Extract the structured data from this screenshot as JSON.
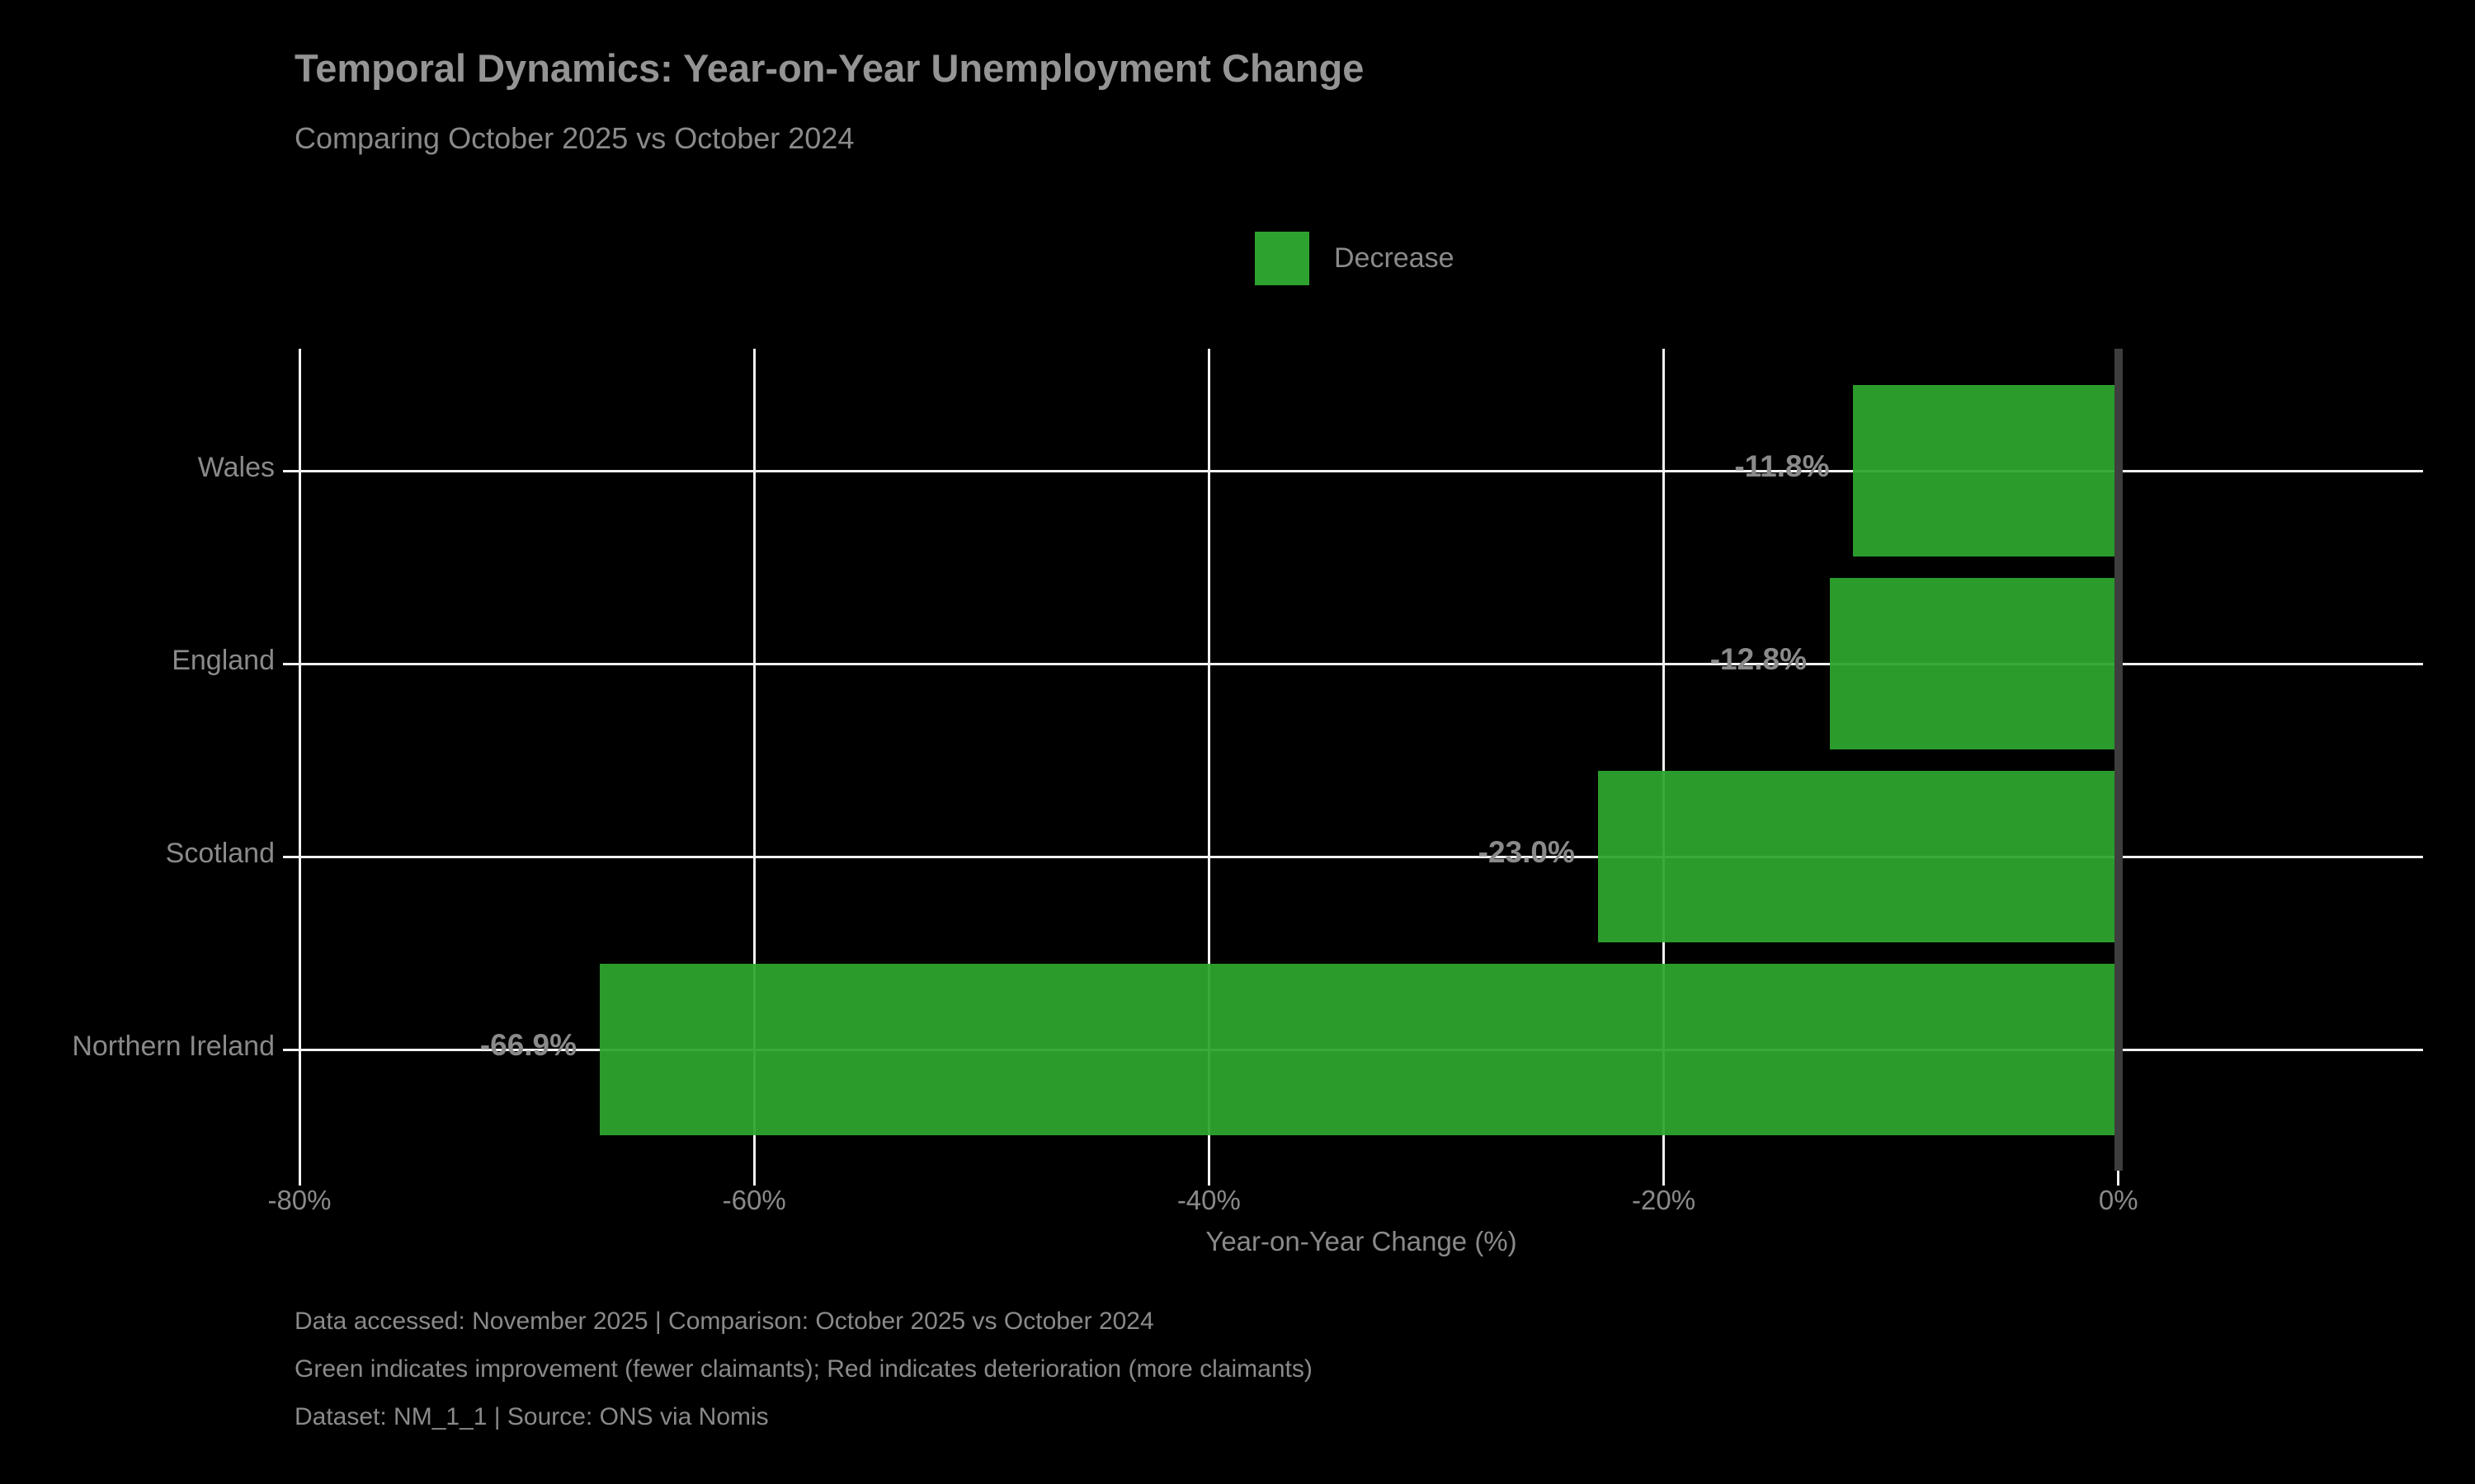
{
  "header": {
    "title": "Temporal Dynamics: Year-on-Year Unemployment Change",
    "subtitle": "Comparing October 2025 vs October 2024"
  },
  "legend": {
    "label": "Decrease",
    "swatch_color": "#2ea22e",
    "position": "upper center above plot"
  },
  "chart_data": {
    "type": "bar",
    "orientation": "horizontal",
    "title": "Temporal Dynamics: Year-on-Year Unemployment Change",
    "subtitle": "Comparing October 2025 vs October 2024",
    "categories": [
      "Wales",
      "England",
      "Scotland",
      "Northern Ireland"
    ],
    "values": [
      -11.8,
      -12.8,
      -23.0,
      -66.9
    ],
    "bar_labels": [
      "-11.8%",
      "-12.8%",
      "-23.0%",
      "-66.9%"
    ],
    "series_name": "Decrease",
    "xlabel": "Year-on-Year Change (%)",
    "ylabel": "",
    "xlim": [
      -80,
      13.4
    ],
    "xticks": [
      -80,
      -60,
      -40,
      -20,
      0
    ],
    "xtick_labels": [
      "-80%",
      "-60%",
      "-40%",
      "-20%",
      "0%"
    ],
    "grid": true,
    "gridline_color": "#f2f2f2",
    "bar_color": "#2ea22e",
    "zero_line_color": "#3e3e3e",
    "background_color": "#000000",
    "text_color": "#8a8a8a"
  },
  "footer": {
    "lines": [
      "Data accessed: November 2025 | Comparison: October 2025 vs October 2024",
      "Green indicates improvement (fewer claimants); Red indicates deterioration (more claimants)",
      "Dataset: NM_1_1 | Source: ONS via Nomis"
    ]
  }
}
